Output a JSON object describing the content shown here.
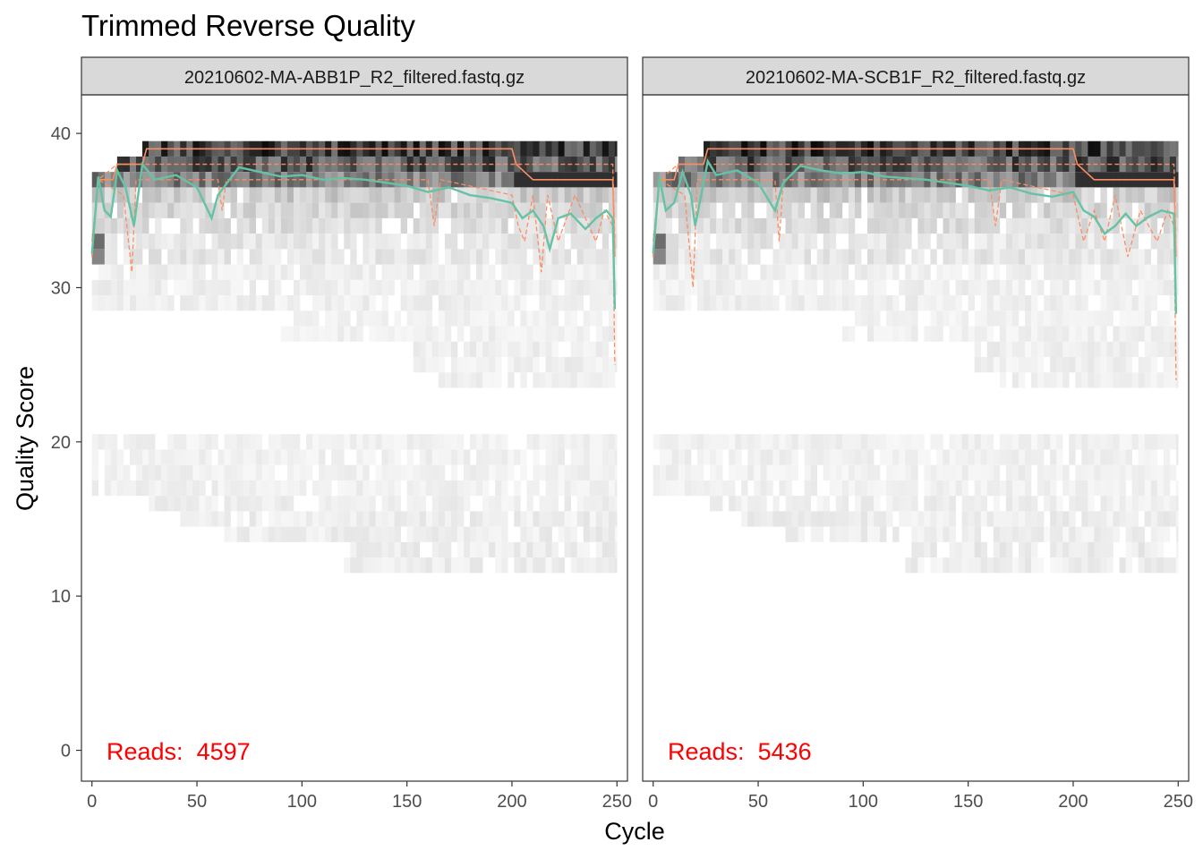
{
  "title": "Trimmed Reverse Quality",
  "xlabel": "Cycle",
  "ylabel": "Quality Score",
  "colors": {
    "mean": "#66C2A5",
    "quantile": "#FC8D62",
    "reads_label": "#FF0000",
    "strip_bg": "#D9D9D9",
    "heat_max": "#000000"
  },
  "chart_data": {
    "type": "heatmap",
    "xlim": [
      -5,
      255
    ],
    "ylim": [
      -2,
      42.5
    ],
    "x_ticks": [
      0,
      50,
      100,
      150,
      200,
      250
    ],
    "y_ticks": [
      0,
      10,
      20,
      30,
      40
    ],
    "panels": [
      {
        "sample": "20210602-MA-ABB1P_R2_filtered.fastq.gz",
        "reads_label": "Reads:",
        "reads": "4597",
        "mean_quality": [
          [
            0,
            32.2
          ],
          [
            3,
            37.2
          ],
          [
            6,
            35.0
          ],
          [
            9,
            34.6
          ],
          [
            12,
            37.6
          ],
          [
            16,
            36.5
          ],
          [
            20,
            34.0
          ],
          [
            24,
            38.0
          ],
          [
            30,
            37.0
          ],
          [
            40,
            37.3
          ],
          [
            50,
            36.5
          ],
          [
            57,
            34.5
          ],
          [
            60,
            36.0
          ],
          [
            70,
            37.8
          ],
          [
            80,
            37.5
          ],
          [
            90,
            37.2
          ],
          [
            100,
            37.3
          ],
          [
            110,
            37.0
          ],
          [
            120,
            37.1
          ],
          [
            130,
            37.0
          ],
          [
            140,
            36.8
          ],
          [
            150,
            36.6
          ],
          [
            160,
            36.2
          ],
          [
            170,
            36.5
          ],
          [
            180,
            36.0
          ],
          [
            190,
            35.8
          ],
          [
            200,
            35.5
          ],
          [
            205,
            34.5
          ],
          [
            210,
            35.0
          ],
          [
            215,
            34.0
          ],
          [
            218,
            32.5
          ],
          [
            222,
            34.5
          ],
          [
            228,
            34.8
          ],
          [
            235,
            33.8
          ],
          [
            240,
            34.5
          ],
          [
            245,
            35.0
          ],
          [
            248,
            34.5
          ],
          [
            249,
            28.6
          ]
        ],
        "median_quality": [
          [
            0,
            32.0
          ],
          [
            3,
            37.0
          ],
          [
            10,
            37.0
          ],
          [
            12,
            38.0
          ],
          [
            24,
            38.0
          ],
          [
            26,
            39.0
          ],
          [
            200,
            39.0
          ],
          [
            202,
            38.0
          ],
          [
            210,
            37.0
          ],
          [
            248,
            37.0
          ],
          [
            249,
            32.0
          ]
        ],
        "q25_quality": [
          [
            0,
            32.0
          ],
          [
            3,
            37.0
          ],
          [
            15,
            36.0
          ],
          [
            19,
            31.0
          ],
          [
            21,
            37.0
          ],
          [
            60,
            37.0
          ],
          [
            62,
            35.0
          ],
          [
            64,
            37.0
          ],
          [
            160,
            37.0
          ],
          [
            163,
            34.0
          ],
          [
            166,
            37.0
          ],
          [
            200,
            36.0
          ],
          [
            203,
            34.0
          ],
          [
            206,
            33.0
          ],
          [
            210,
            36.0
          ],
          [
            214,
            31.0
          ],
          [
            217,
            36.0
          ],
          [
            222,
            33.0
          ],
          [
            230,
            36.0
          ],
          [
            240,
            33.0
          ],
          [
            244,
            35.0
          ],
          [
            248,
            34.0
          ],
          [
            249,
            25.0
          ]
        ],
        "q75_quality": [
          [
            0,
            33.0
          ],
          [
            3,
            37.0
          ],
          [
            12,
            38.0
          ],
          [
            248,
            38.0
          ],
          [
            249,
            33.0
          ]
        ]
      },
      {
        "sample": "20210602-MA-SCB1F_R2_filtered.fastq.gz",
        "reads_label": "Reads:",
        "reads": "5436",
        "mean_quality": [
          [
            0,
            32.2
          ],
          [
            3,
            37.2
          ],
          [
            6,
            35.0
          ],
          [
            10,
            35.5
          ],
          [
            14,
            37.5
          ],
          [
            18,
            36.0
          ],
          [
            20,
            34.0
          ],
          [
            26,
            38.2
          ],
          [
            30,
            37.3
          ],
          [
            40,
            37.6
          ],
          [
            50,
            36.8
          ],
          [
            58,
            35.0
          ],
          [
            62,
            36.8
          ],
          [
            70,
            37.9
          ],
          [
            80,
            37.6
          ],
          [
            90,
            37.4
          ],
          [
            100,
            37.5
          ],
          [
            110,
            37.2
          ],
          [
            120,
            37.1
          ],
          [
            130,
            37.0
          ],
          [
            140,
            36.8
          ],
          [
            150,
            36.6
          ],
          [
            160,
            36.3
          ],
          [
            170,
            36.5
          ],
          [
            180,
            36.1
          ],
          [
            190,
            35.9
          ],
          [
            200,
            36.2
          ],
          [
            205,
            35.0
          ],
          [
            210,
            34.6
          ],
          [
            215,
            33.5
          ],
          [
            220,
            34.0
          ],
          [
            225,
            34.8
          ],
          [
            230,
            34.0
          ],
          [
            236,
            34.6
          ],
          [
            242,
            35.0
          ],
          [
            248,
            34.8
          ],
          [
            249,
            28.3
          ]
        ],
        "median_quality": [
          [
            0,
            32.0
          ],
          [
            3,
            37.0
          ],
          [
            10,
            37.0
          ],
          [
            12,
            38.0
          ],
          [
            24,
            38.0
          ],
          [
            26,
            39.0
          ],
          [
            200,
            39.0
          ],
          [
            202,
            38.0
          ],
          [
            210,
            37.0
          ],
          [
            248,
            37.0
          ],
          [
            249,
            32.0
          ]
        ],
        "q25_quality": [
          [
            0,
            32.0
          ],
          [
            3,
            37.0
          ],
          [
            15,
            36.0
          ],
          [
            19,
            30.0
          ],
          [
            21,
            37.0
          ],
          [
            58,
            37.0
          ],
          [
            60,
            33.0
          ],
          [
            62,
            37.0
          ],
          [
            160,
            37.0
          ],
          [
            163,
            34.0
          ],
          [
            166,
            37.0
          ],
          [
            200,
            36.0
          ],
          [
            205,
            33.0
          ],
          [
            210,
            35.0
          ],
          [
            215,
            33.0
          ],
          [
            220,
            36.0
          ],
          [
            226,
            32.0
          ],
          [
            232,
            35.0
          ],
          [
            240,
            33.0
          ],
          [
            245,
            35.0
          ],
          [
            248,
            34.0
          ],
          [
            249,
            24.0
          ]
        ],
        "q75_quality": [
          [
            0,
            33.0
          ],
          [
            3,
            37.0
          ],
          [
            12,
            38.0
          ],
          [
            248,
            38.0
          ],
          [
            249,
            33.0
          ]
        ]
      }
    ]
  }
}
